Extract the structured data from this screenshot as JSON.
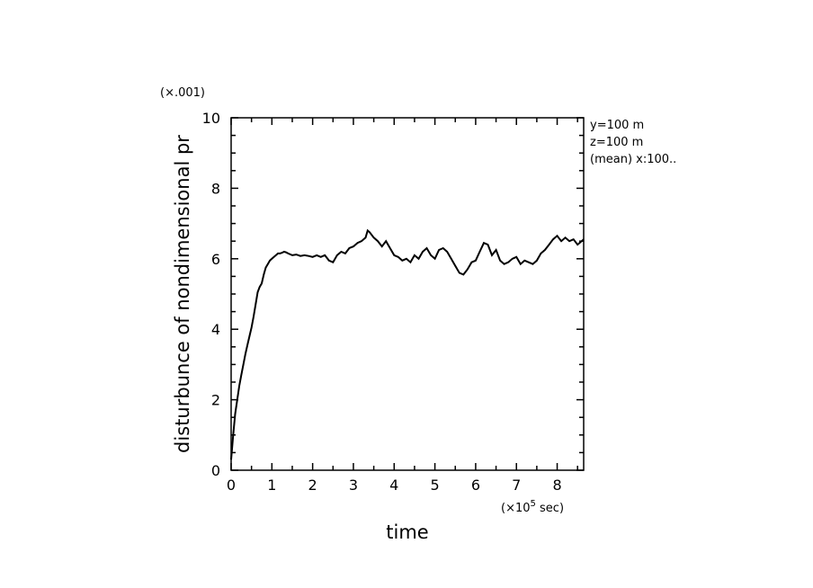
{
  "chart_data": {
    "type": "line",
    "title": "",
    "xlabel": "time",
    "ylabel": "disturbunce of nondimensional pr",
    "x_scale_label": "(×10⁵ sec)",
    "x_scale_base": "(×10",
    "x_scale_exp": "5",
    "x_scale_unit": " sec)",
    "y_scale_label": "(×.001)",
    "xlim": [
      0,
      8.65
    ],
    "ylim": [
      0,
      10
    ],
    "x_ticks": [
      "0",
      "1",
      "2",
      "3",
      "4",
      "5",
      "6",
      "7",
      "8"
    ],
    "y_ticks": [
      "0",
      "2",
      "4",
      "6",
      "8",
      "10"
    ],
    "annotations": [
      "y=100 m",
      "z=100 m",
      "(mean) x:100.."
    ],
    "grid": false,
    "series": [
      {
        "x": [
          0,
          0.05,
          0.1,
          0.15,
          0.2,
          0.25,
          0.3,
          0.35,
          0.4,
          0.45,
          0.5,
          0.55,
          0.6,
          0.65,
          0.7,
          0.75,
          0.8,
          0.85,
          0.9,
          0.95,
          1.0,
          1.05,
          1.1,
          1.15,
          1.2,
          1.25,
          1.3,
          1.35,
          1.4,
          1.5,
          1.6,
          1.7,
          1.8,
          1.9,
          2.0,
          2.1,
          2.2,
          2.3,
          2.4,
          2.5,
          2.6,
          2.7,
          2.8,
          2.9,
          3.0,
          3.1,
          3.2,
          3.3,
          3.35,
          3.4,
          3.5,
          3.6,
          3.7,
          3.8,
          3.9,
          4.0,
          4.1,
          4.2,
          4.3,
          4.4,
          4.5,
          4.6,
          4.7,
          4.8,
          4.9,
          5.0,
          5.1,
          5.2,
          5.3,
          5.4,
          5.5,
          5.6,
          5.7,
          5.8,
          5.9,
          6.0,
          6.1,
          6.2,
          6.3,
          6.4,
          6.5,
          6.6,
          6.7,
          6.8,
          6.9,
          7.0,
          7.1,
          7.2,
          7.3,
          7.4,
          7.5,
          7.6,
          7.7,
          7.8,
          7.9,
          8.0,
          8.1,
          8.2,
          8.3,
          8.4,
          8.5,
          8.6,
          8.65
        ],
        "y": [
          0.3,
          1.0,
          1.6,
          2.0,
          2.4,
          2.7,
          3.0,
          3.3,
          3.55,
          3.8,
          4.05,
          4.35,
          4.7,
          5.05,
          5.2,
          5.3,
          5.55,
          5.75,
          5.85,
          5.95,
          6.0,
          6.05,
          6.1,
          6.15,
          6.15,
          6.17,
          6.2,
          6.18,
          6.15,
          6.1,
          6.12,
          6.08,
          6.1,
          6.08,
          6.05,
          6.1,
          6.05,
          6.1,
          5.95,
          5.9,
          6.1,
          6.2,
          6.15,
          6.3,
          6.35,
          6.45,
          6.5,
          6.6,
          6.8,
          6.75,
          6.6,
          6.5,
          6.35,
          6.5,
          6.3,
          6.1,
          6.05,
          5.95,
          6.0,
          5.9,
          6.1,
          6.0,
          6.2,
          6.3,
          6.1,
          6.0,
          6.25,
          6.3,
          6.2,
          6.0,
          5.8,
          5.6,
          5.55,
          5.7,
          5.9,
          5.95,
          6.2,
          6.45,
          6.4,
          6.1,
          6.25,
          5.95,
          5.85,
          5.9,
          6.0,
          6.05,
          5.85,
          5.95,
          5.9,
          5.85,
          5.95,
          6.15,
          6.25,
          6.4,
          6.55,
          6.65,
          6.5,
          6.6,
          6.5,
          6.55,
          6.4,
          6.5,
          6.55
        ]
      }
    ],
    "colors": {
      "line": "#000000",
      "axis": "#000000",
      "background": "#ffffff"
    }
  }
}
